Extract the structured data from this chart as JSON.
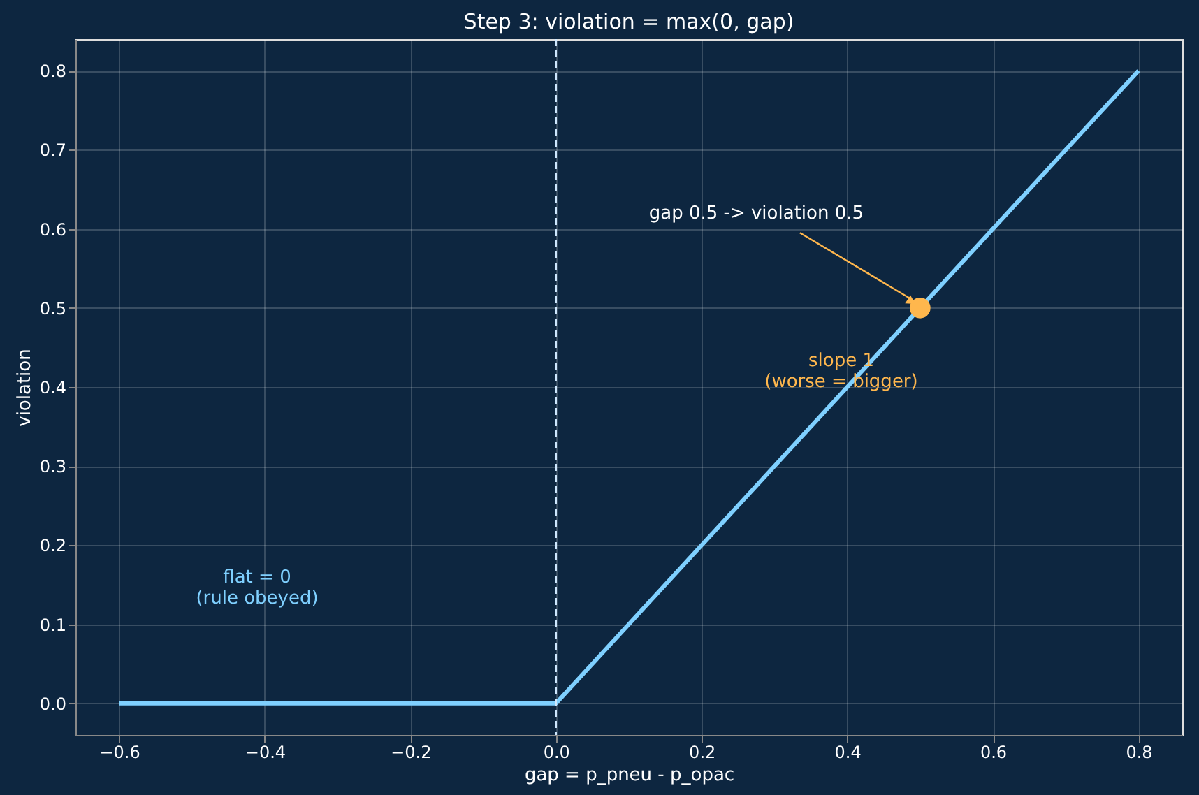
{
  "chart_data": {
    "type": "line",
    "title": "Step 3: violation = max(0, gap)",
    "xlabel": "gap = p_pneu - p_opac",
    "ylabel": "violation",
    "series": [
      {
        "color": "#7fd0ff",
        "x": [
          -0.6,
          0,
          0.8
        ],
        "values": [
          0,
          0,
          0.8
        ]
      },
      {
        "type": "scatter",
        "color": "#ffb74d",
        "x": [
          0.5
        ],
        "values": [
          0.5
        ]
      }
    ],
    "annotations": [
      {
        "text": "gap 0.5 -> violation 0.5",
        "x": 0.5,
        "y": 0.5
      },
      "slope 1\n(worse = bigger)",
      "flat = 0\n(rule obeyed)"
    ],
    "ref_lines": [
      {
        "axis": "x",
        "value": 0,
        "color": "#cfe8ff",
        "line_style": "dashed"
      }
    ],
    "xlim": [
      -0.66,
      0.86
    ],
    "ylim": [
      -0.04,
      0.84
    ],
    "xticks": [
      -0.6,
      -0.4,
      -0.2,
      {
        "value": 0,
        "label": "0.0"
      },
      0.2,
      0.4,
      0.6,
      0.8
    ],
    "yticks": [
      {
        "value": 0,
        "label": "0.0"
      },
      0.1,
      0.2,
      0.3,
      0.4,
      0.5,
      0.6,
      0.7,
      0.8
    ],
    "grid": true
  }
}
